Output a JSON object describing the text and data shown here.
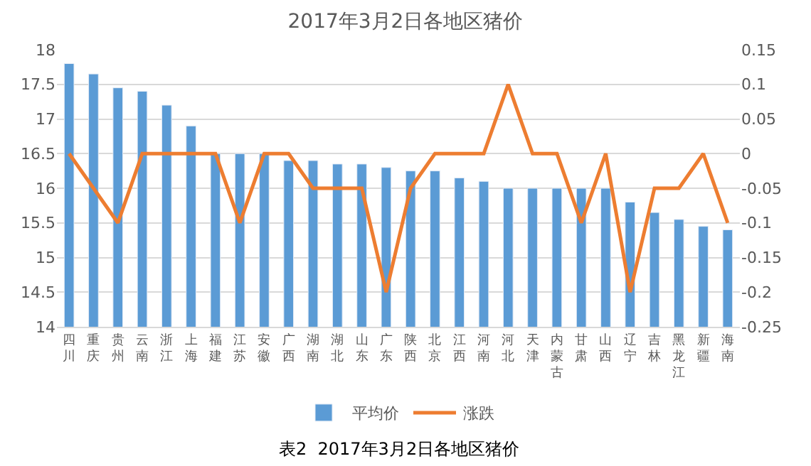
{
  "chart_data": {
    "type": "bar",
    "title": "2017年3月2日各地区猪价",
    "categories": [
      "四川",
      "重庆",
      "贵州",
      "云南",
      "浙江",
      "上海",
      "福建",
      "江苏",
      "安徽",
      "广西",
      "湖南",
      "湖北",
      "山东",
      "广东",
      "陕西",
      "北京",
      "江西",
      "河南",
      "河北",
      "天津",
      "内蒙古",
      "甘肃",
      "山西",
      "辽宁",
      "吉林",
      "黑龙江",
      "新疆",
      "海南"
    ],
    "series": [
      {
        "name": "平均价",
        "color": "#5b9bd5",
        "values": [
          17.8,
          17.65,
          17.45,
          17.4,
          17.2,
          16.9,
          16.5,
          16.5,
          16.5,
          16.4,
          16.4,
          16.35,
          16.35,
          16.3,
          16.25,
          16.25,
          16.15,
          16.1,
          16.0,
          16.0,
          16.0,
          16.0,
          16.0,
          15.8,
          15.65,
          15.55,
          15.45,
          15.4
        ]
      },
      {
        "name": "涨跌",
        "color": "#ed7d31",
        "type": "line",
        "axis": "y2",
        "values": [
          0,
          -0.05,
          -0.1,
          0,
          0,
          0,
          0,
          -0.1,
          0,
          0,
          -0.05,
          -0.05,
          -0.05,
          -0.2,
          -0.05,
          0,
          0,
          0,
          0.1,
          0,
          0,
          -0.1,
          0,
          -0.2,
          -0.05,
          -0.05,
          0,
          -0.1
        ]
      }
    ],
    "ylim": [
      14,
      18
    ],
    "yticks": [
      14,
      14.5,
      15,
      15.5,
      16,
      16.5,
      17,
      17.5,
      18
    ],
    "y2lim": [
      -0.25,
      0.15
    ],
    "y2ticks": [
      -0.25,
      -0.2,
      -0.15,
      -0.1,
      -0.05,
      0,
      0.05,
      0.1,
      0.15
    ],
    "grid": "y",
    "legend": "bottom",
    "marker": "none",
    "annotations": [
      "表2  2017年3月2日各地区猪价"
    ]
  }
}
